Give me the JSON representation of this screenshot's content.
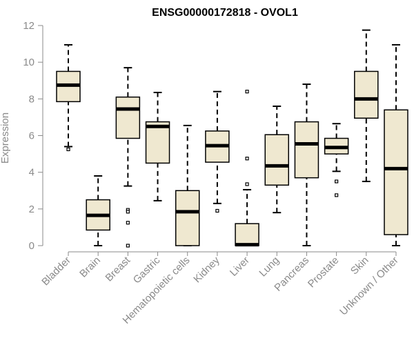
{
  "chart_data": {
    "type": "box",
    "title": "ENSG00000172818 - OVOL1",
    "xlabel": "",
    "ylabel": "Expression",
    "ylim": [
      0,
      12
    ],
    "yticks": [
      0,
      2,
      4,
      6,
      8,
      10,
      12
    ],
    "categories": [
      "Bladder",
      "Brain",
      "Breast",
      "Gastric",
      "Hematopoietic cells",
      "Kidney",
      "Liver",
      "Lung",
      "Pancreas",
      "Prostate",
      "Skin",
      "Unknown / Other"
    ],
    "boxes": [
      {
        "min": 5.4,
        "q1": 7.85,
        "median": 8.75,
        "q3": 9.5,
        "max": 10.95,
        "outliers": [
          5.25
        ]
      },
      {
        "min": 0.0,
        "q1": 0.85,
        "median": 1.65,
        "q3": 2.5,
        "max": 3.8,
        "outliers": []
      },
      {
        "min": 3.25,
        "q1": 5.85,
        "median": 7.45,
        "q3": 8.1,
        "max": 9.7,
        "outliers": [
          1.95,
          1.85,
          1.25,
          0.0
        ]
      },
      {
        "min": 2.45,
        "q1": 4.5,
        "median": 6.5,
        "q3": 6.75,
        "max": 8.35,
        "outliers": []
      },
      {
        "min": 0.0,
        "q1": 0.0,
        "median": 1.85,
        "q3": 3.0,
        "max": 6.55,
        "outliers": []
      },
      {
        "min": 2.3,
        "q1": 4.55,
        "median": 5.45,
        "q3": 6.25,
        "max": 8.4,
        "outliers": [
          1.9
        ]
      },
      {
        "min": 0.0,
        "q1": 0.0,
        "median": 0.05,
        "q3": 1.2,
        "max": 3.05,
        "outliers": [
          3.35,
          4.75,
          8.4
        ]
      },
      {
        "min": 1.8,
        "q1": 3.3,
        "median": 4.35,
        "q3": 6.05,
        "max": 7.6,
        "outliers": []
      },
      {
        "min": 0.0,
        "q1": 3.7,
        "median": 5.55,
        "q3": 6.75,
        "max": 8.8,
        "outliers": []
      },
      {
        "min": 4.05,
        "q1": 5.0,
        "median": 5.35,
        "q3": 5.85,
        "max": 6.65,
        "outliers": [
          3.5,
          2.75
        ]
      },
      {
        "min": 3.5,
        "q1": 6.95,
        "median": 8.0,
        "q3": 9.5,
        "max": 11.75,
        "outliers": []
      },
      {
        "min": 0.0,
        "q1": 0.6,
        "median": 4.2,
        "q3": 7.4,
        "max": 10.95,
        "outliers": []
      }
    ],
    "grid": false,
    "legend": "none",
    "colors": {
      "box_fill": "#efe8d0",
      "box_stroke": "#000000",
      "median": "#000000",
      "axis": "#8a8a8a"
    }
  }
}
